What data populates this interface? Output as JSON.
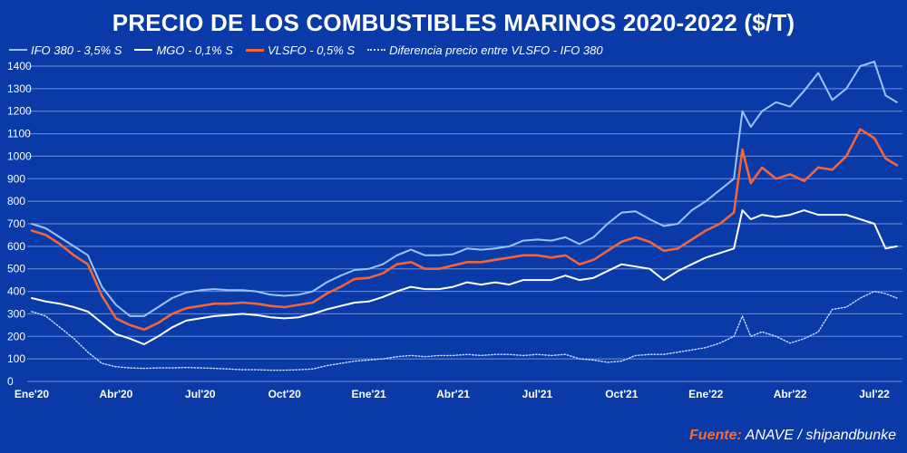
{
  "title": "PRECIO DE LOS COMBUSTIBLES MARINOS 2020-2022 ($/T)",
  "source": {
    "label": "Fuente:",
    "text": "ANAVE / shipandbunke"
  },
  "colors": {
    "background": "#0a3aa8",
    "ifo380": "#9cc3f5",
    "mgo": "#ffffff",
    "vlsfo": "#f2643a",
    "diff": "#c8dcff"
  },
  "chart_data": {
    "type": "line",
    "title": "PRECIO DE LOS COMBUSTIBLES MARINOS 2020-2022 ($/T)",
    "xlabel": "",
    "ylabel": "$/T",
    "ylim": [
      0,
      1400
    ],
    "yticks": [
      0,
      100,
      200,
      300,
      400,
      500,
      600,
      700,
      800,
      900,
      1000,
      1100,
      1200,
      1300,
      1400
    ],
    "xlim": [
      0,
      31
    ],
    "xticks": [
      {
        "x": 0,
        "label": "Ene'20"
      },
      {
        "x": 3,
        "label": "Abr'20"
      },
      {
        "x": 6,
        "label": "Jul'20"
      },
      {
        "x": 9,
        "label": "Oct'20"
      },
      {
        "x": 12,
        "label": "Ene'21"
      },
      {
        "x": 15,
        "label": "Abr'21"
      },
      {
        "x": 18,
        "label": "Jul'21"
      },
      {
        "x": 21,
        "label": "Oct'21"
      },
      {
        "x": 24,
        "label": "Ene'22"
      },
      {
        "x": 27,
        "label": "Abr'22"
      },
      {
        "x": 30,
        "label": "Jul'22"
      }
    ],
    "grid": true,
    "legend_position": "top-left",
    "x": [
      0,
      0.5,
      1,
      1.5,
      2,
      2.5,
      3,
      3.5,
      4,
      4.5,
      5,
      5.5,
      6,
      6.5,
      7,
      7.5,
      8,
      8.5,
      9,
      9.5,
      10,
      10.5,
      11,
      11.5,
      12,
      12.5,
      13,
      13.5,
      14,
      14.5,
      15,
      15.5,
      16,
      16.5,
      17,
      17.5,
      18,
      18.5,
      19,
      19.5,
      20,
      20.5,
      21,
      21.5,
      22,
      22.5,
      23,
      23.5,
      24,
      24.5,
      25,
      25.3,
      25.6,
      26,
      26.5,
      27,
      27.5,
      28,
      28.5,
      29,
      29.5,
      30,
      30.4,
      30.8
    ],
    "series": [
      {
        "name": "IFO 380 - 3,5% S",
        "style": "solid-light",
        "values": [
          700,
          680,
          640,
          600,
          560,
          420,
          340,
          290,
          290,
          330,
          370,
          395,
          405,
          410,
          405,
          405,
          400,
          385,
          380,
          385,
          400,
          440,
          470,
          495,
          500,
          520,
          560,
          585,
          560,
          560,
          565,
          590,
          585,
          590,
          600,
          625,
          630,
          625,
          640,
          610,
          640,
          700,
          750,
          755,
          720,
          690,
          700,
          760,
          800,
          850,
          900,
          1200,
          1130,
          1200,
          1240,
          1220,
          1290,
          1370,
          1250,
          1300,
          1400,
          1420,
          1270,
          1240
        ]
      },
      {
        "name": "MGO - 0,1% S",
        "style": "solid-white",
        "values": [
          370,
          355,
          345,
          330,
          310,
          260,
          210,
          190,
          165,
          200,
          240,
          270,
          280,
          290,
          295,
          300,
          295,
          285,
          280,
          285,
          300,
          320,
          335,
          350,
          355,
          375,
          400,
          420,
          410,
          410,
          420,
          440,
          430,
          440,
          430,
          450,
          450,
          450,
          470,
          450,
          460,
          490,
          520,
          510,
          500,
          450,
          490,
          520,
          550,
          570,
          590,
          760,
          720,
          740,
          730,
          740,
          760,
          740,
          740,
          740,
          720,
          700,
          590,
          600
        ]
      },
      {
        "name": "VLSFO - 0,5% S",
        "style": "solid-orange",
        "values": [
          670,
          650,
          610,
          560,
          520,
          380,
          280,
          250,
          230,
          260,
          300,
          325,
          335,
          345,
          345,
          350,
          345,
          335,
          330,
          340,
          350,
          390,
          420,
          455,
          460,
          480,
          520,
          530,
          500,
          500,
          515,
          530,
          530,
          540,
          550,
          560,
          560,
          550,
          560,
          520,
          540,
          580,
          620,
          640,
          620,
          580,
          590,
          630,
          670,
          700,
          750,
          1030,
          880,
          950,
          900,
          920,
          890,
          950,
          940,
          1000,
          1120,
          1080,
          990,
          960
        ]
      },
      {
        "name": "Diferencia precio entre VLSFO - IFO 380",
        "style": "dotted",
        "values": [
          310,
          290,
          240,
          190,
          130,
          80,
          65,
          60,
          58,
          60,
          60,
          62,
          60,
          58,
          55,
          52,
          52,
          50,
          50,
          52,
          55,
          70,
          80,
          90,
          95,
          100,
          110,
          115,
          110,
          115,
          115,
          120,
          115,
          120,
          120,
          115,
          120,
          115,
          120,
          100,
          95,
          85,
          90,
          115,
          120,
          120,
          130,
          140,
          150,
          170,
          200,
          290,
          200,
          220,
          200,
          170,
          190,
          220,
          320,
          330,
          370,
          400,
          390,
          370
        ]
      }
    ]
  }
}
